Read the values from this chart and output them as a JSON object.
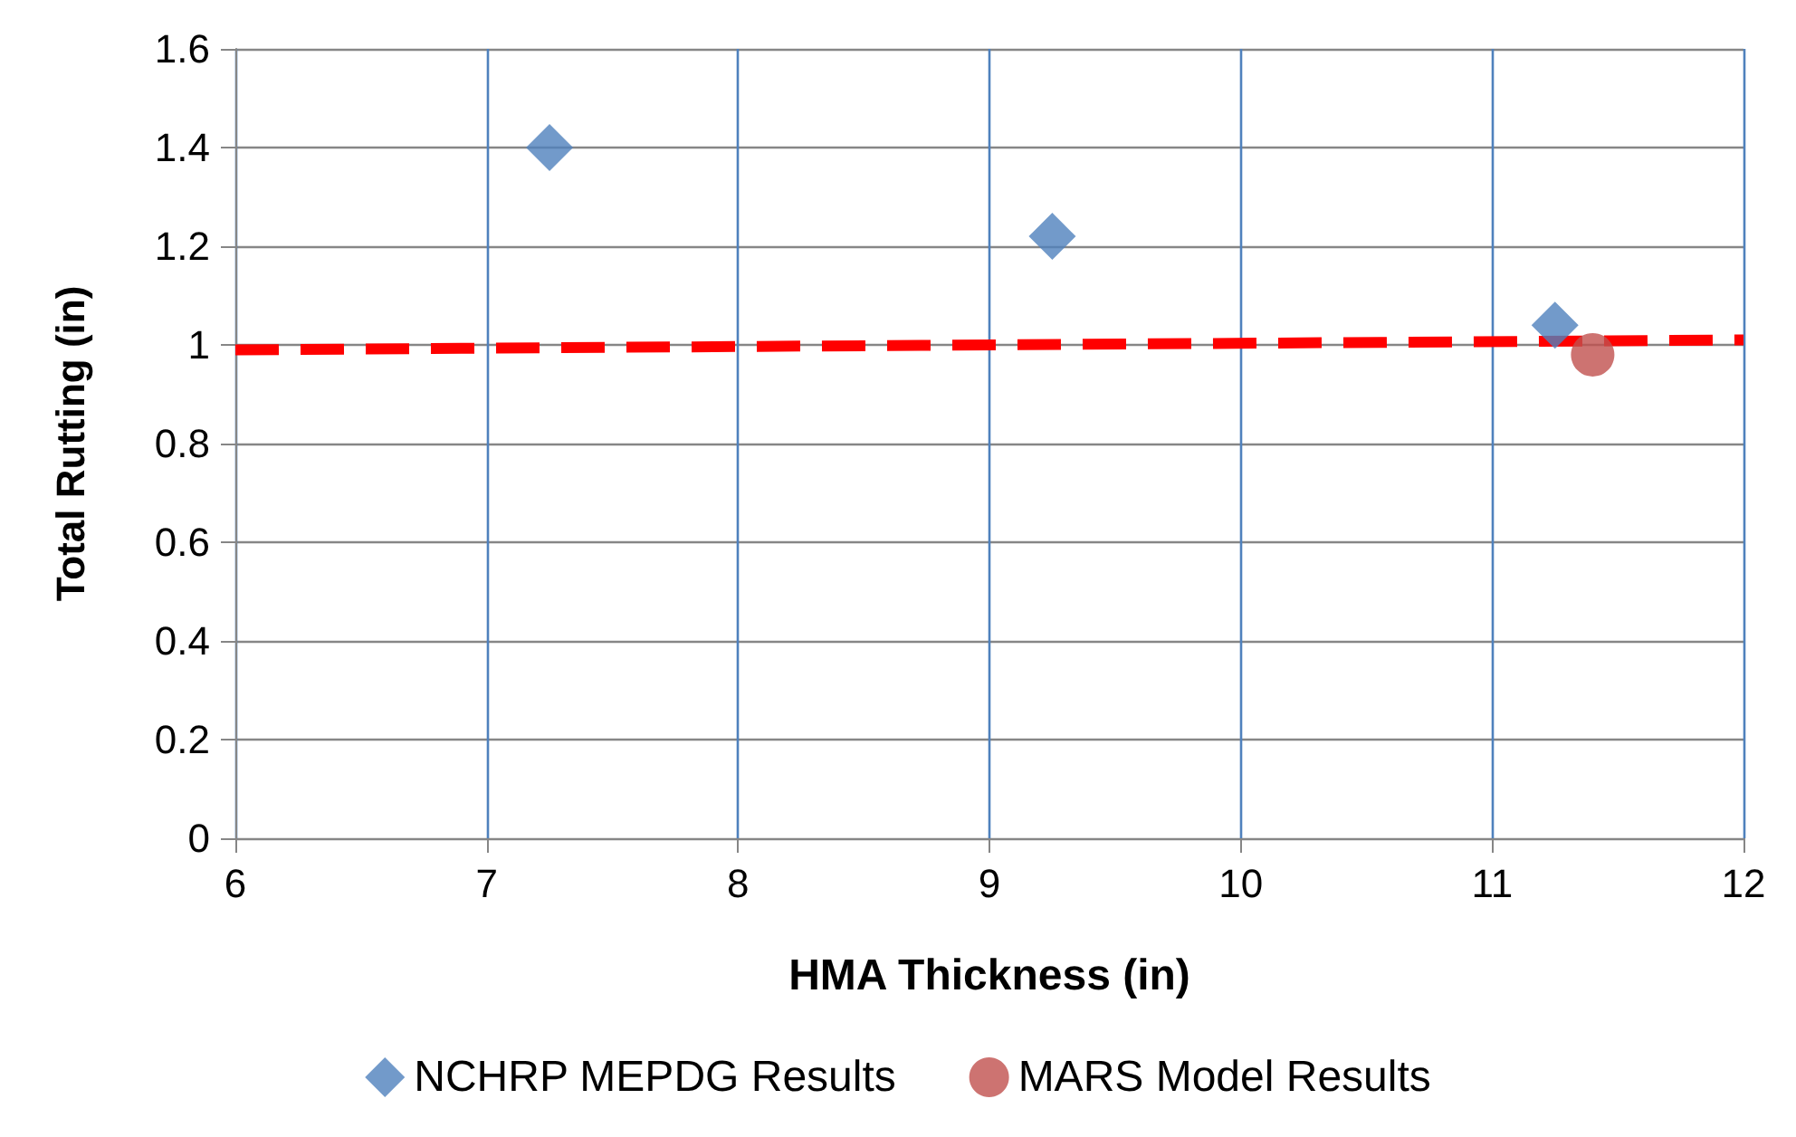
{
  "chart_data": {
    "type": "scatter",
    "xlabel": "HMA Thickness (in)",
    "ylabel": "Total Rutting (in)",
    "xlim": [
      6,
      12
    ],
    "xticks": [
      6,
      7,
      8,
      9,
      10,
      11,
      12
    ],
    "ylim": [
      0,
      1.6
    ],
    "yticks": [
      0,
      0.2,
      0.4,
      0.6,
      0.8,
      1,
      1.2,
      1.4,
      1.6
    ],
    "grid": true,
    "legend": "bottom",
    "series": [
      {
        "name": "NCHRP MEPDG Results",
        "color": "#4f81bd",
        "marker": "diamond",
        "x": [
          7.25,
          9.25,
          11.25
        ],
        "values": [
          1.4,
          1.22,
          1.04
        ]
      },
      {
        "name": "MARS Model Results",
        "color": "#c0504d",
        "marker": "circle",
        "x": [
          11.4
        ],
        "values": [
          0.98
        ]
      },
      {
        "type": "line",
        "color": "#ff0000",
        "line_style": "dashed",
        "marker": "none",
        "x": [
          6,
          12
        ],
        "values": [
          0.99,
          1.01
        ]
      }
    ]
  }
}
